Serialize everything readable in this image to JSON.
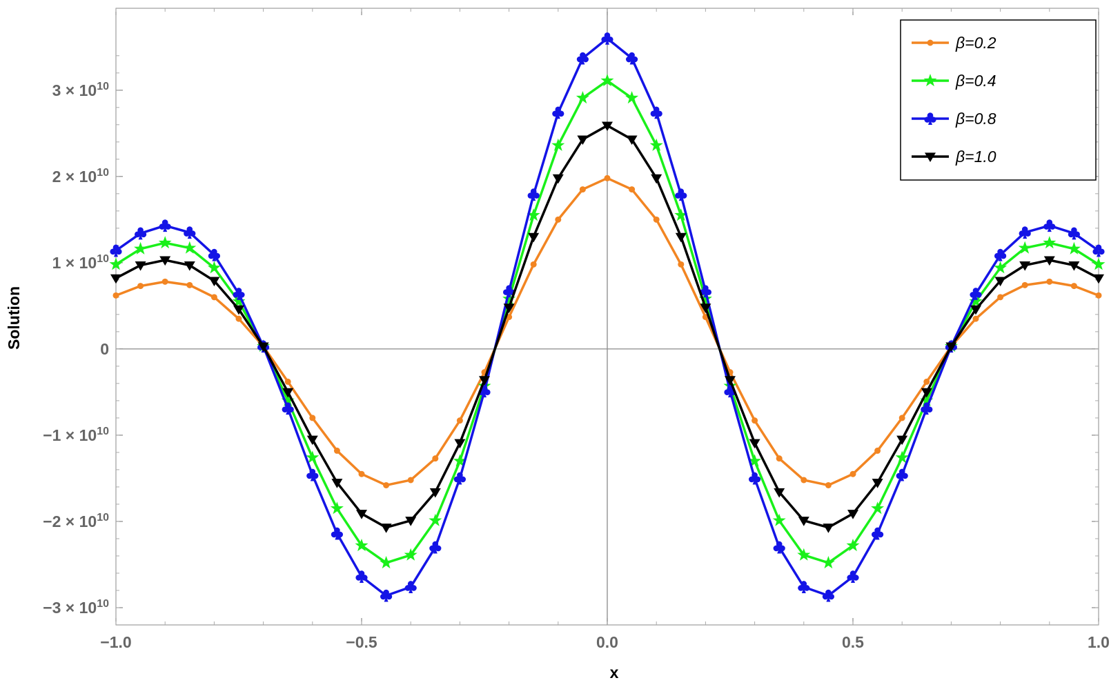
{
  "chart_data": {
    "type": "line",
    "title": "",
    "xlabel": "x",
    "ylabel": "Solution",
    "xlim": [
      -1.0,
      1.0
    ],
    "ylim": [
      -32000000000.0,
      39500000000.0
    ],
    "x_ticks": [
      {
        "value": -1.0,
        "label": "−1.0"
      },
      {
        "value": -0.5,
        "label": "−0.5"
      },
      {
        "value": 0.0,
        "label": "0.0"
      },
      {
        "value": 0.5,
        "label": "0.5"
      },
      {
        "value": 1.0,
        "label": "1.0"
      }
    ],
    "y_ticks": [
      {
        "value": -30000000000.0,
        "mant": "−3",
        "exp": "10"
      },
      {
        "value": -20000000000.0,
        "mant": "−2",
        "exp": "10"
      },
      {
        "value": -10000000000.0,
        "mant": "−1",
        "exp": "10"
      },
      {
        "value": 0,
        "mant": "0",
        "exp": ""
      },
      {
        "value": 10000000000.0,
        "mant": "1",
        "exp": "10"
      },
      {
        "value": 20000000000.0,
        "mant": "2",
        "exp": "10"
      },
      {
        "value": 30000000000.0,
        "mant": "3",
        "exp": "10"
      }
    ],
    "legend_position": "top-right",
    "grid": false,
    "x": [
      -1.0,
      -0.95,
      -0.9,
      -0.85,
      -0.8,
      -0.75,
      -0.7,
      -0.65,
      -0.6,
      -0.55,
      -0.5,
      -0.45,
      -0.4,
      -0.35,
      -0.3,
      -0.25,
      -0.2,
      -0.15,
      -0.1,
      -0.05,
      0.0,
      0.05,
      0.1,
      0.15,
      0.2,
      0.25,
      0.3,
      0.35,
      0.4,
      0.45,
      0.5,
      0.55,
      0.6,
      0.65,
      0.7,
      0.75,
      0.8,
      0.85,
      0.9,
      0.95,
      1.0
    ],
    "series": [
      {
        "name": "β=0.2",
        "color": "#F28522",
        "marker": "circle",
        "values": [
          0.62,
          0.73,
          0.78,
          0.74,
          0.6,
          0.35,
          0.03,
          -0.38,
          -0.8,
          -1.18,
          -1.45,
          -1.58,
          -1.52,
          -1.27,
          -0.83,
          -0.27,
          0.37,
          0.98,
          1.5,
          1.85,
          1.98,
          1.85,
          1.5,
          0.98,
          0.37,
          -0.27,
          -0.83,
          -1.27,
          -1.52,
          -1.58,
          -1.45,
          -1.18,
          -0.8,
          -0.38,
          0.03,
          0.35,
          0.6,
          0.74,
          0.78,
          0.73,
          0.62
        ]
      },
      {
        "name": "β=0.4",
        "color": "#1AF01A",
        "marker": "star",
        "values": [
          0.98,
          1.16,
          1.23,
          1.17,
          0.94,
          0.55,
          0.03,
          -0.6,
          -1.26,
          -1.85,
          -2.28,
          -2.48,
          -2.39,
          -1.99,
          -1.3,
          -0.43,
          0.58,
          1.55,
          2.36,
          2.91,
          3.11,
          2.91,
          2.36,
          1.55,
          0.58,
          -0.43,
          -1.3,
          -1.99,
          -2.39,
          -2.48,
          -2.28,
          -1.85,
          -1.26,
          -0.6,
          0.03,
          0.55,
          0.94,
          1.17,
          1.23,
          1.16,
          0.98
        ]
      },
      {
        "name": "β=0.8",
        "color": "#1414E6",
        "marker": "club",
        "values": [
          1.14,
          1.34,
          1.43,
          1.35,
          1.09,
          0.64,
          0.03,
          -0.69,
          -1.46,
          -2.14,
          -2.64,
          -2.86,
          -2.76,
          -2.3,
          -1.5,
          -0.49,
          0.67,
          1.79,
          2.74,
          3.37,
          3.6,
          3.37,
          2.74,
          1.79,
          0.67,
          -0.49,
          -1.5,
          -2.3,
          -2.76,
          -2.86,
          -2.64,
          -2.14,
          -1.46,
          -0.69,
          0.03,
          0.64,
          1.09,
          1.35,
          1.43,
          1.34,
          1.14
        ]
      },
      {
        "name": "β=1.0",
        "color": "#000000",
        "marker": "down-triangle",
        "values": [
          0.82,
          0.97,
          1.03,
          0.97,
          0.79,
          0.46,
          0.03,
          -0.5,
          -1.05,
          -1.55,
          -1.91,
          -2.07,
          -1.99,
          -1.66,
          -1.09,
          -0.36,
          0.48,
          1.3,
          1.98,
          2.43,
          2.59,
          2.43,
          1.98,
          1.3,
          0.48,
          -0.36,
          -1.09,
          -1.66,
          -1.99,
          -2.07,
          -1.91,
          -1.55,
          -1.05,
          -0.5,
          0.03,
          0.46,
          0.79,
          0.97,
          1.03,
          0.97,
          0.82
        ]
      }
    ]
  }
}
